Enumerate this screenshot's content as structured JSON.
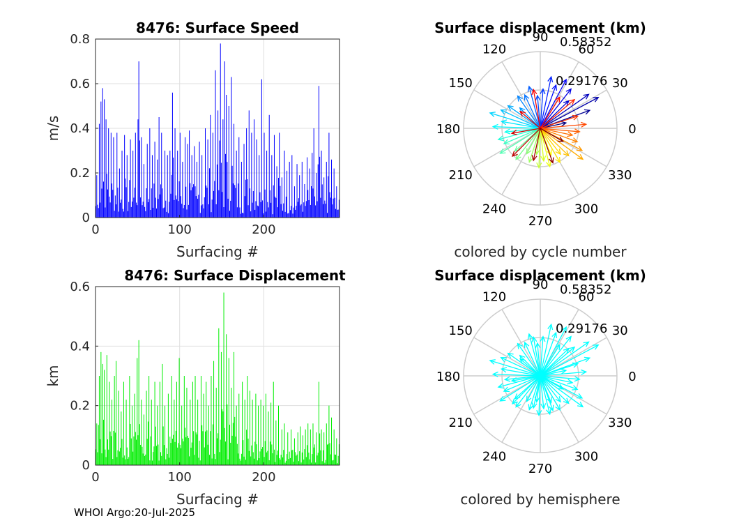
{
  "footer": "WHOI Argo:20-Jul-2025",
  "chart_data": [
    {
      "id": "speed",
      "type": "bar",
      "title": "8476: Surface Speed",
      "xlabel": "Surfacing #",
      "ylabel": "m/s",
      "color": "#0000ff",
      "xlim": [
        0,
        290
      ],
      "ylim": [
        0,
        0.8
      ],
      "xticks": [
        0,
        100,
        200
      ],
      "yticks": [
        0,
        0.2,
        0.4,
        0.6,
        0.8
      ],
      "ytick_labels": [
        "0",
        "0.2",
        "0.4",
        "0.6",
        "0.8"
      ],
      "peaks": [
        [
          1,
          0.19
        ],
        [
          4,
          0.42
        ],
        [
          6,
          0.52
        ],
        [
          8,
          0.58
        ],
        [
          10,
          0.53
        ],
        [
          12,
          0.44
        ],
        [
          15,
          0.4
        ],
        [
          18,
          0.38
        ],
        [
          21,
          0.36
        ],
        [
          25,
          0.38
        ],
        [
          28,
          0.22
        ],
        [
          31,
          0.3
        ],
        [
          34,
          0.37
        ],
        [
          37,
          0.28
        ],
        [
          41,
          0.35
        ],
        [
          44,
          0.3
        ],
        [
          47,
          0.38
        ],
        [
          50,
          0.44
        ],
        [
          51,
          0.7
        ],
        [
          54,
          0.36
        ],
        [
          57,
          0.24
        ],
        [
          61,
          0.33
        ],
        [
          64,
          0.4
        ],
        [
          67,
          0.28
        ],
        [
          70,
          0.34
        ],
        [
          73,
          0.26
        ],
        [
          75,
          0.45
        ],
        [
          78,
          0.38
        ],
        [
          82,
          0.3
        ],
        [
          85,
          0.28
        ],
        [
          88,
          0.3
        ],
        [
          91,
          0.56
        ],
        [
          94,
          0.4
        ],
        [
          97,
          0.3
        ],
        [
          100,
          0.38
        ],
        [
          103,
          0.25
        ],
        [
          106,
          0.36
        ],
        [
          109,
          0.33
        ],
        [
          111,
          0.39
        ],
        [
          114,
          0.28
        ],
        [
          117,
          0.32
        ],
        [
          120,
          0.25
        ],
        [
          123,
          0.34
        ],
        [
          126,
          0.28
        ],
        [
          130,
          0.4
        ],
        [
          133,
          0.35
        ],
        [
          136,
          0.46
        ],
        [
          139,
          0.38
        ],
        [
          142,
          0.66
        ],
        [
          145,
          0.48
        ],
        [
          148,
          0.78
        ],
        [
          151,
          0.44
        ],
        [
          153,
          0.7
        ],
        [
          155,
          0.55
        ],
        [
          158,
          0.5
        ],
        [
          161,
          0.63
        ],
        [
          164,
          0.42
        ],
        [
          167,
          0.3
        ],
        [
          170,
          0.36
        ],
        [
          173,
          0.25
        ],
        [
          176,
          0.33
        ],
        [
          179,
          0.4
        ],
        [
          182,
          0.48
        ],
        [
          185,
          0.38
        ],
        [
          188,
          0.44
        ],
        [
          191,
          0.35
        ],
        [
          194,
          0.28
        ],
        [
          197,
          0.62
        ],
        [
          200,
          0.38
        ],
        [
          203,
          0.3
        ],
        [
          206,
          0.46
        ],
        [
          209,
          0.28
        ],
        [
          212,
          0.37
        ],
        [
          215,
          0.23
        ],
        [
          218,
          0.38
        ],
        [
          221,
          0.18
        ],
        [
          224,
          0.3
        ],
        [
          227,
          0.21
        ],
        [
          230,
          0.25
        ],
        [
          233,
          0.28
        ],
        [
          236,
          0.14
        ],
        [
          239,
          0.24
        ],
        [
          242,
          0.19
        ],
        [
          245,
          0.25
        ],
        [
          248,
          0.15
        ],
        [
          251,
          0.27
        ],
        [
          254,
          0.22
        ],
        [
          257,
          0.29
        ],
        [
          259,
          0.4
        ],
        [
          262,
          0.2
        ],
        [
          265,
          0.59
        ],
        [
          268,
          0.3
        ],
        [
          271,
          0.18
        ],
        [
          274,
          0.25
        ],
        [
          277,
          0.38
        ],
        [
          280,
          0.26
        ],
        [
          283,
          0.22
        ],
        [
          286,
          0.14
        ],
        [
          289,
          0.08
        ]
      ]
    },
    {
      "id": "disp",
      "type": "bar",
      "title": "8476: Surface Displacement",
      "xlabel": "Surfacing #",
      "ylabel": "km",
      "color": "#00ee00",
      "xlim": [
        0,
        290
      ],
      "ylim": [
        0,
        0.6
      ],
      "xticks": [
        0,
        100,
        200
      ],
      "yticks": [
        0,
        0.2,
        0.4,
        0.6
      ],
      "ytick_labels": [
        "0",
        "0.2",
        "0.4",
        "0.6"
      ],
      "peaks": [
        [
          1,
          0.14
        ],
        [
          4,
          0.3
        ],
        [
          6,
          0.38
        ],
        [
          8,
          0.34
        ],
        [
          10,
          0.32
        ],
        [
          13,
          0.37
        ],
        [
          16,
          0.28
        ],
        [
          19,
          0.22
        ],
        [
          22,
          0.3
        ],
        [
          24,
          0.35
        ],
        [
          27,
          0.25
        ],
        [
          30,
          0.18
        ],
        [
          33,
          0.28
        ],
        [
          36,
          0.22
        ],
        [
          40,
          0.3
        ],
        [
          43,
          0.2
        ],
        [
          46,
          0.24
        ],
        [
          49,
          0.36
        ],
        [
          51,
          0.42
        ],
        [
          54,
          0.22
        ],
        [
          57,
          0.17
        ],
        [
          60,
          0.25
        ],
        [
          63,
          0.3
        ],
        [
          66,
          0.22
        ],
        [
          70,
          0.28
        ],
        [
          73,
          0.2
        ],
        [
          76,
          0.28
        ],
        [
          79,
          0.34
        ],
        [
          82,
          0.2
        ],
        [
          86,
          0.24
        ],
        [
          90,
          0.3
        ],
        [
          93,
          0.22
        ],
        [
          96,
          0.28
        ],
        [
          99,
          0.36
        ],
        [
          102,
          0.2
        ],
        [
          105,
          0.3
        ],
        [
          108,
          0.26
        ],
        [
          112,
          0.22
        ],
        [
          115,
          0.28
        ],
        [
          118,
          0.3
        ],
        [
          121,
          0.22
        ],
        [
          125,
          0.3
        ],
        [
          128,
          0.24
        ],
        [
          131,
          0.28
        ],
        [
          134,
          0.2
        ],
        [
          137,
          0.3
        ],
        [
          140,
          0.35
        ],
        [
          143,
          0.26
        ],
        [
          146,
          0.46
        ],
        [
          149,
          0.38
        ],
        [
          152,
          0.58
        ],
        [
          155,
          0.44
        ],
        [
          158,
          0.36
        ],
        [
          161,
          0.26
        ],
        [
          164,
          0.38
        ],
        [
          167,
          0.2
        ],
        [
          170,
          0.24
        ],
        [
          174,
          0.28
        ],
        [
          177,
          0.22
        ],
        [
          180,
          0.3
        ],
        [
          183,
          0.25
        ],
        [
          186,
          0.22
        ],
        [
          190,
          0.24
        ],
        [
          193,
          0.2
        ],
        [
          196,
          0.22
        ],
        [
          199,
          0.2
        ],
        [
          202,
          0.24
        ],
        [
          205,
          0.18
        ],
        [
          208,
          0.21
        ],
        [
          211,
          0.28
        ],
        [
          214,
          0.15
        ],
        [
          217,
          0.2
        ],
        [
          221,
          0.12
        ],
        [
          224,
          0.14
        ],
        [
          228,
          0.11
        ],
        [
          232,
          0.12
        ],
        [
          236,
          0.09
        ],
        [
          240,
          0.11
        ],
        [
          243,
          0.13
        ],
        [
          246,
          0.1
        ],
        [
          249,
          0.12
        ],
        [
          252,
          0.14
        ],
        [
          255,
          0.12
        ],
        [
          258,
          0.14
        ],
        [
          262,
          0.11
        ],
        [
          265,
          0.28
        ],
        [
          268,
          0.12
        ],
        [
          271,
          0.11
        ],
        [
          274,
          0.14
        ],
        [
          277,
          0.2
        ],
        [
          280,
          0.16
        ],
        [
          283,
          0.12
        ],
        [
          286,
          0.09
        ],
        [
          289,
          0.07
        ]
      ]
    },
    {
      "id": "polar-cycle",
      "type": "polar-quiver",
      "title": "Surface displacement (km)",
      "caption": "colored by cycle number",
      "rlim": [
        0,
        0.58352
      ],
      "r_ticks": [
        "0.29176",
        "0.58352"
      ],
      "angle_labels": [
        "0",
        "30",
        "60",
        "90",
        "120",
        "150",
        "180",
        "210",
        "240",
        "270",
        "300",
        "330"
      ],
      "colormap": "jet",
      "vectors": [
        [
          12,
          0.2
        ],
        [
          20,
          0.4
        ],
        [
          28,
          0.5
        ],
        [
          35,
          0.45
        ],
        [
          44,
          0.3
        ],
        [
          52,
          0.38
        ],
        [
          62,
          0.42
        ],
        [
          70,
          0.35
        ],
        [
          78,
          0.4
        ],
        [
          86,
          0.3
        ],
        [
          95,
          0.25
        ],
        [
          105,
          0.33
        ],
        [
          115,
          0.28
        ],
        [
          125,
          0.3
        ],
        [
          135,
          0.22
        ],
        [
          145,
          0.3
        ],
        [
          155,
          0.33
        ],
        [
          163,
          0.4
        ],
        [
          170,
          0.3
        ],
        [
          178,
          0.36
        ],
        [
          186,
          0.27
        ],
        [
          195,
          0.33
        ],
        [
          203,
          0.3
        ],
        [
          212,
          0.36
        ],
        [
          222,
          0.26
        ],
        [
          232,
          0.3
        ],
        [
          242,
          0.22
        ],
        [
          252,
          0.27
        ],
        [
          262,
          0.2
        ],
        [
          268,
          0.3
        ],
        [
          276,
          0.25
        ],
        [
          284,
          0.3
        ],
        [
          292,
          0.22
        ],
        [
          300,
          0.3
        ],
        [
          308,
          0.25
        ],
        [
          316,
          0.3
        ],
        [
          324,
          0.4
        ],
        [
          332,
          0.36
        ],
        [
          340,
          0.3
        ],
        [
          348,
          0.25
        ],
        [
          355,
          0.3
        ],
        [
          5,
          0.35
        ],
        [
          18,
          0.3
        ],
        [
          40,
          0.34
        ],
        [
          58,
          0.28
        ],
        [
          100,
          0.3
        ],
        [
          140,
          0.2
        ],
        [
          190,
          0.22
        ],
        [
          225,
          0.3
        ],
        [
          258,
          0.25
        ],
        [
          290,
          0.28
        ],
        [
          330,
          0.2
        ]
      ]
    },
    {
      "id": "polar-hemi",
      "type": "polar-quiver",
      "title": "Surface displacement (km)",
      "caption": "colored by hemisphere",
      "rlim": [
        0,
        0.58352
      ],
      "r_ticks": [
        "0.29176",
        "0.58352"
      ],
      "angle_labels": [
        "0",
        "30",
        "60",
        "90",
        "120",
        "150",
        "180",
        "210",
        "240",
        "270",
        "300",
        "330"
      ],
      "color": "#00ffff",
      "vectors": [
        [
          12,
          0.2
        ],
        [
          20,
          0.4
        ],
        [
          28,
          0.5
        ],
        [
          35,
          0.45
        ],
        [
          44,
          0.3
        ],
        [
          52,
          0.38
        ],
        [
          62,
          0.42
        ],
        [
          70,
          0.35
        ],
        [
          78,
          0.4
        ],
        [
          86,
          0.3
        ],
        [
          95,
          0.25
        ],
        [
          105,
          0.33
        ],
        [
          115,
          0.28
        ],
        [
          125,
          0.3
        ],
        [
          135,
          0.22
        ],
        [
          145,
          0.3
        ],
        [
          155,
          0.33
        ],
        [
          163,
          0.4
        ],
        [
          170,
          0.3
        ],
        [
          178,
          0.36
        ],
        [
          186,
          0.27
        ],
        [
          195,
          0.33
        ],
        [
          203,
          0.3
        ],
        [
          212,
          0.36
        ],
        [
          222,
          0.26
        ],
        [
          232,
          0.3
        ],
        [
          242,
          0.22
        ],
        [
          252,
          0.27
        ],
        [
          262,
          0.2
        ],
        [
          268,
          0.3
        ],
        [
          276,
          0.25
        ],
        [
          284,
          0.3
        ],
        [
          292,
          0.22
        ],
        [
          300,
          0.3
        ],
        [
          308,
          0.25
        ],
        [
          316,
          0.3
        ],
        [
          324,
          0.4
        ],
        [
          332,
          0.36
        ],
        [
          340,
          0.3
        ],
        [
          348,
          0.25
        ],
        [
          355,
          0.3
        ],
        [
          5,
          0.35
        ],
        [
          18,
          0.3
        ],
        [
          40,
          0.34
        ],
        [
          58,
          0.28
        ],
        [
          100,
          0.3
        ],
        [
          140,
          0.2
        ],
        [
          190,
          0.22
        ],
        [
          225,
          0.3
        ],
        [
          258,
          0.25
        ],
        [
          290,
          0.28
        ],
        [
          330,
          0.2
        ]
      ]
    }
  ]
}
